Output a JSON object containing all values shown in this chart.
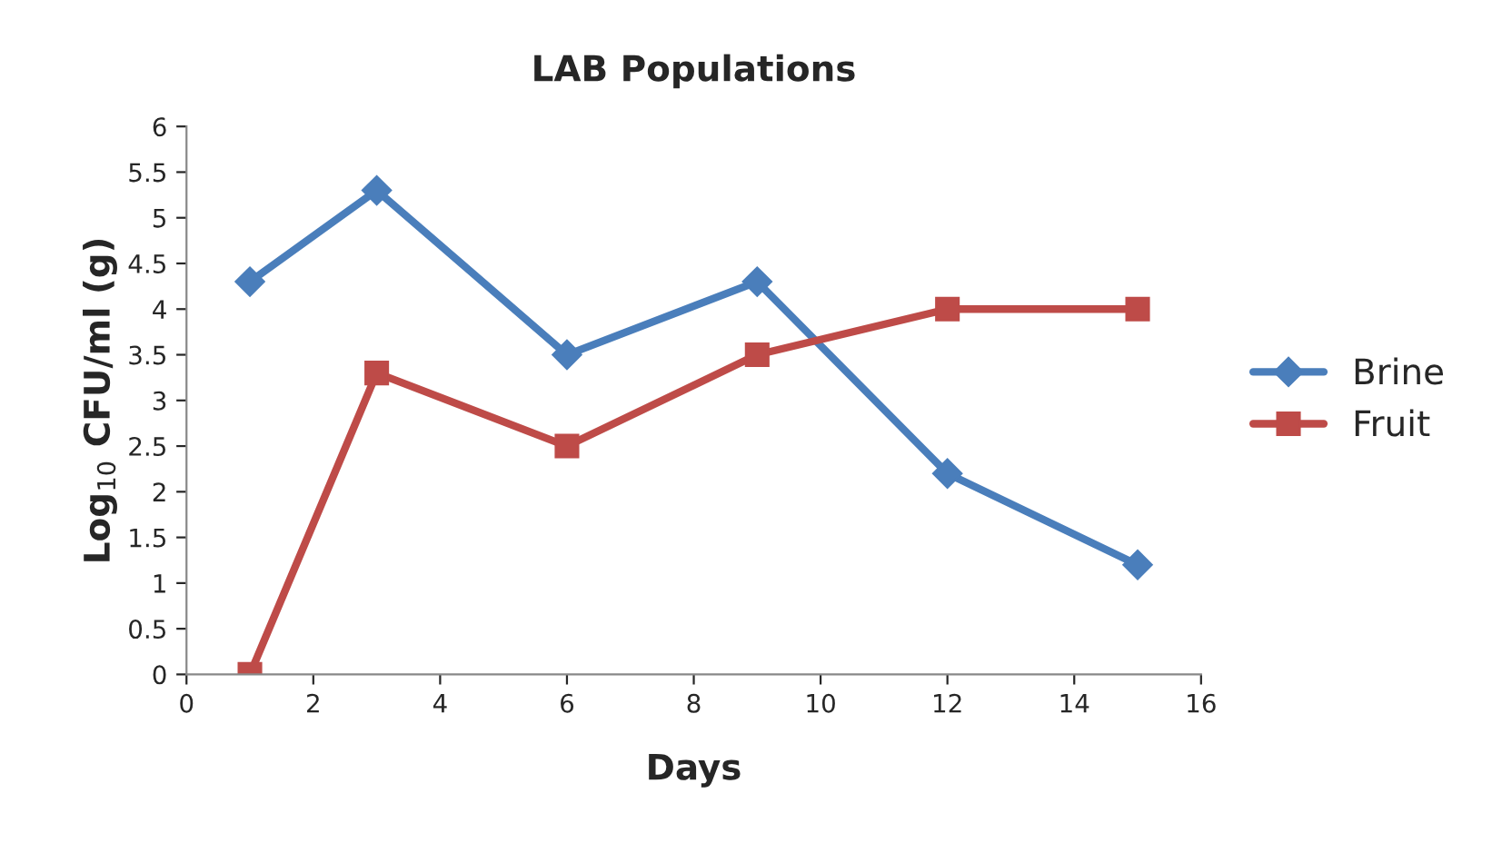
{
  "chart_data": {
    "type": "line",
    "title": "LAB Populations",
    "xlabel": "Days",
    "ylabel": "Log$_{10}$ CFU/ml (g)",
    "x": [
      1,
      3,
      6,
      9,
      12,
      15
    ],
    "series": [
      {
        "name": "Brine",
        "color": "#4a7ebb",
        "marker": "diamond",
        "values": [
          4.3,
          5.3,
          3.5,
          4.3,
          2.2,
          1.2
        ]
      },
      {
        "name": "Fruit",
        "color": "#be4b48",
        "marker": "square",
        "values": [
          0,
          3.3,
          2.5,
          3.5,
          4,
          4
        ]
      }
    ],
    "xlim": [
      0,
      16
    ],
    "xticks": [
      0,
      2,
      4,
      6,
      8,
      10,
      12,
      14,
      16
    ],
    "ylim": [
      0,
      6
    ],
    "yticks": [
      0,
      0.5,
      1,
      1.5,
      2,
      2.5,
      3,
      3.5,
      4,
      4.5,
      5,
      5.5,
      6
    ],
    "grid": false,
    "legend": "right",
    "line_style": "solid"
  }
}
